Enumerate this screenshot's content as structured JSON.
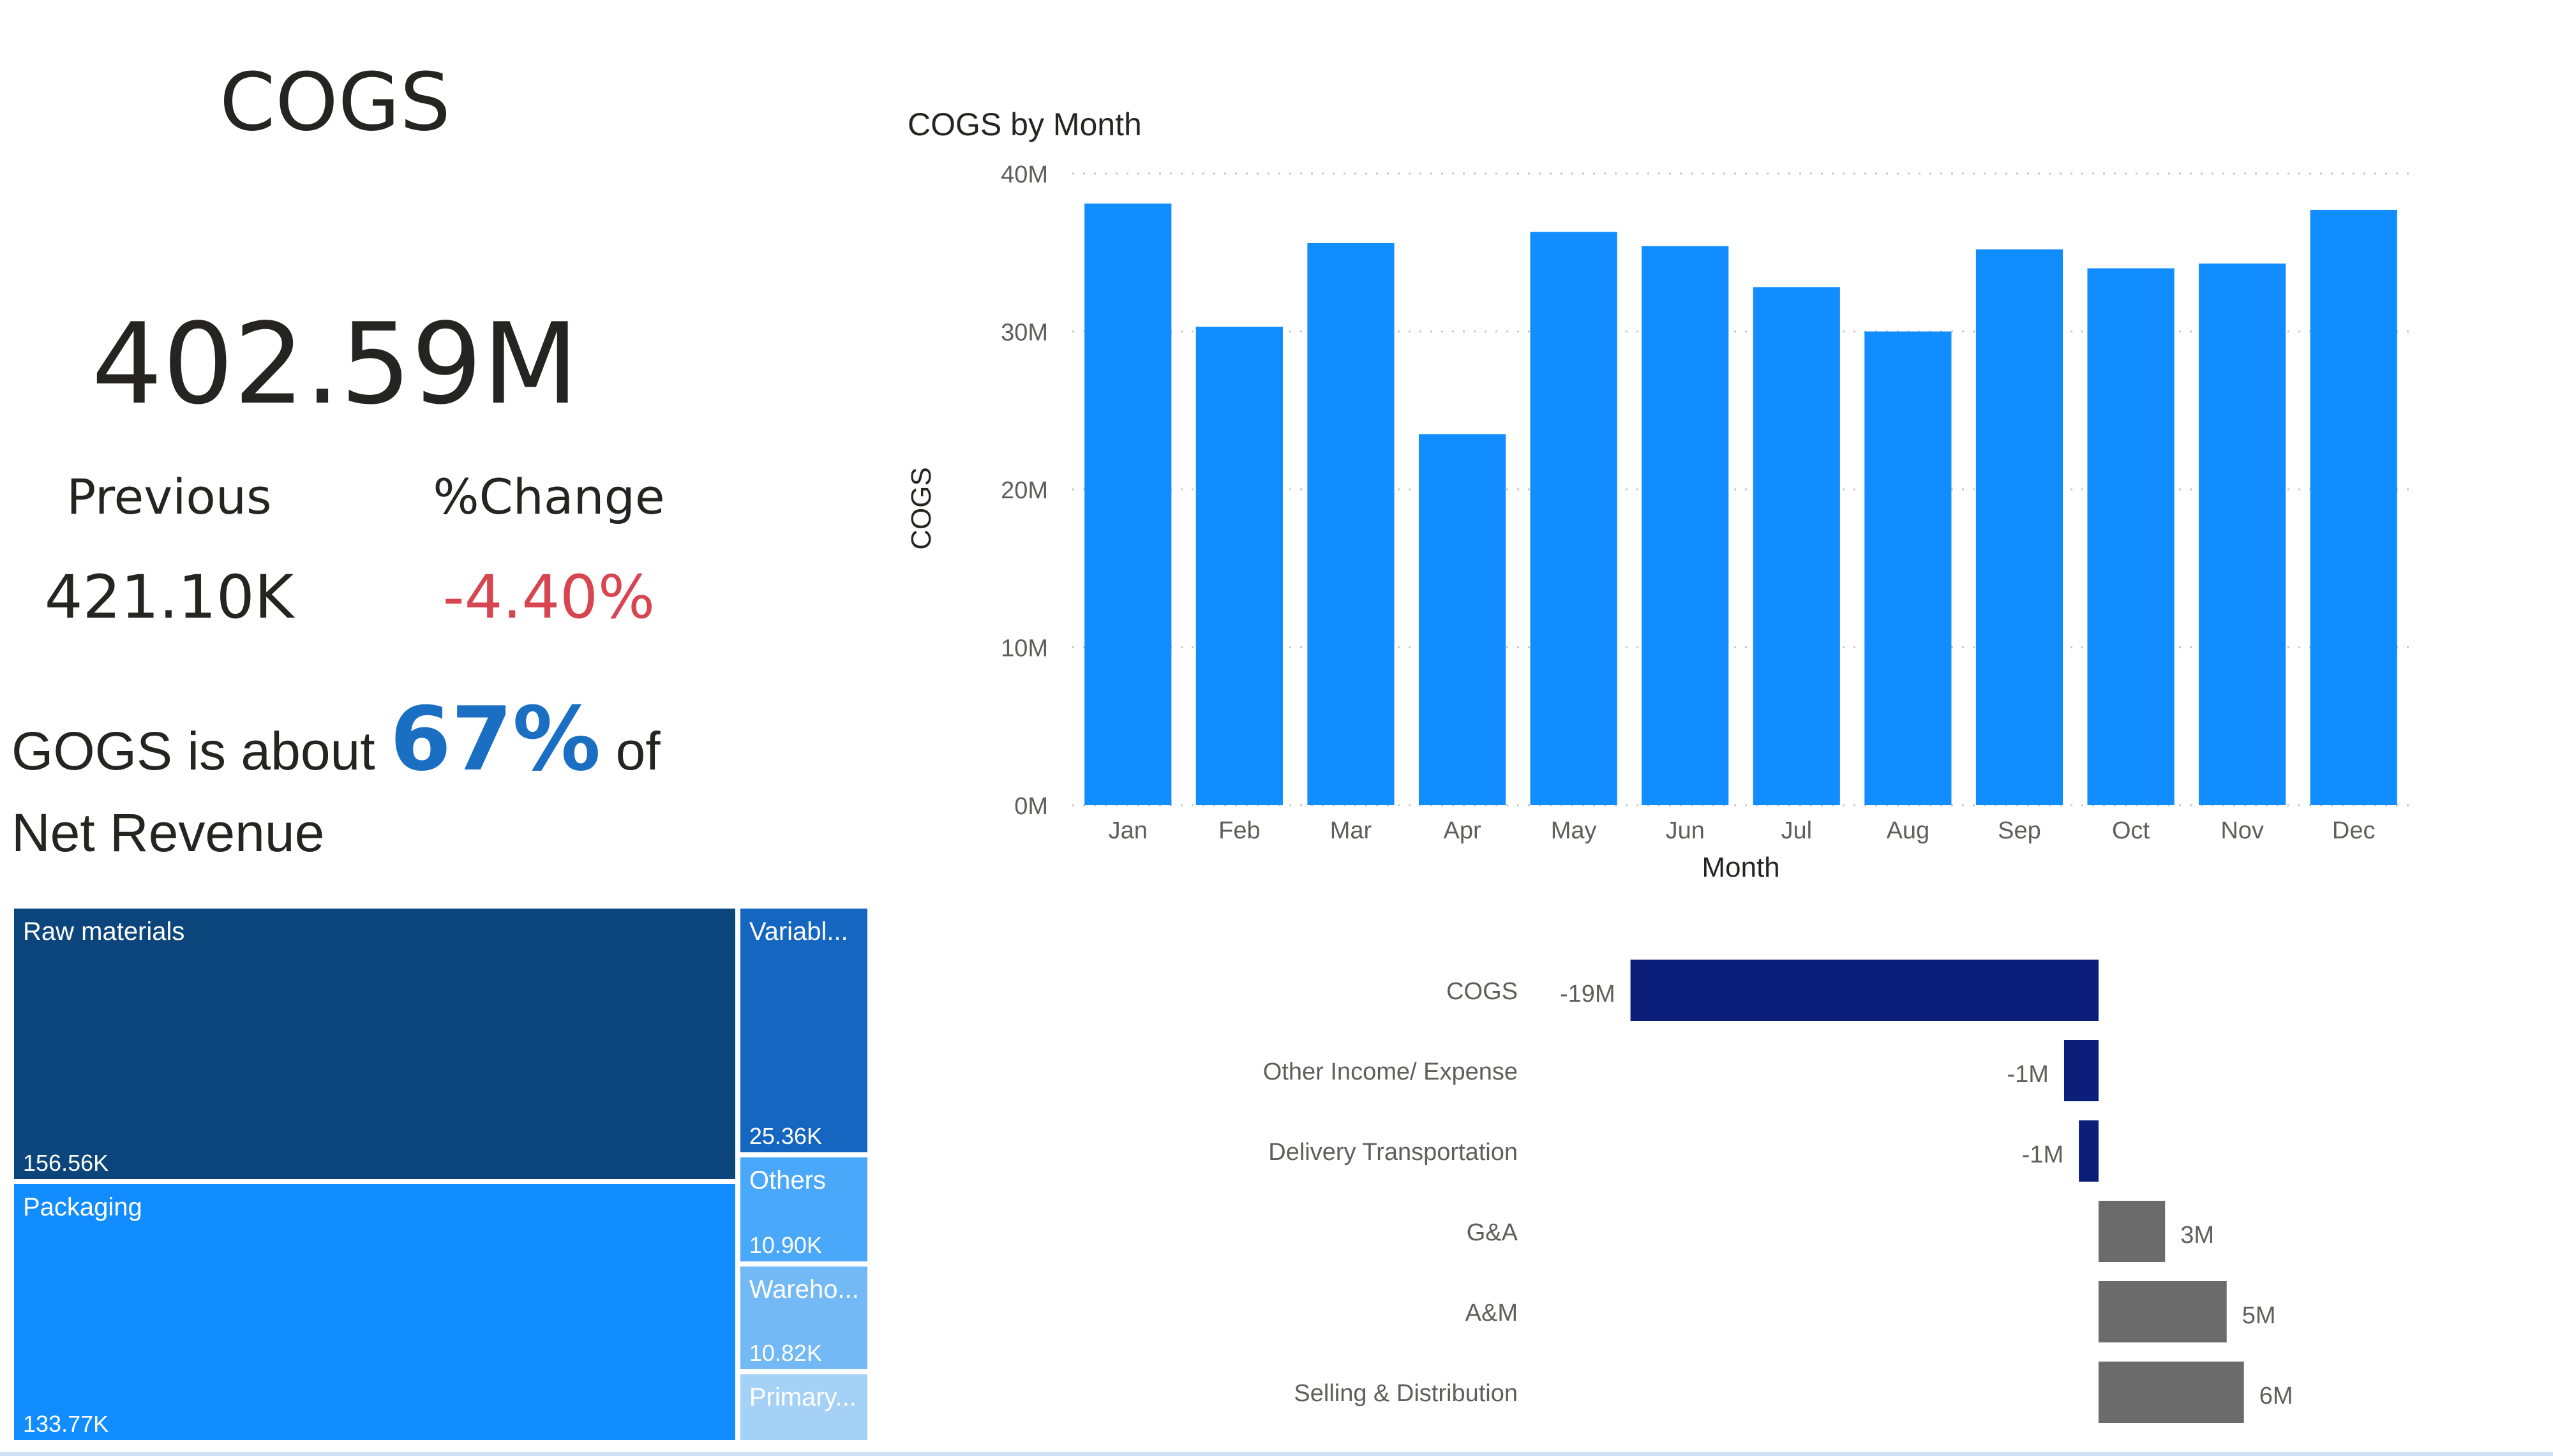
{
  "kpi": {
    "title": "COGS",
    "value": "402.59M",
    "previous_label": "Previous",
    "previous_value": "421.10K",
    "change_label": "%Change",
    "change_value": "-4.40%",
    "change_color": "#d64550"
  },
  "statement": {
    "prefix": "GOGS is about",
    "percent": "67%",
    "suffix": "of",
    "line2": "Net Revenue",
    "accent": "#1a6fc2"
  },
  "chart_data": [
    {
      "type": "bar",
      "title": "COGS by Month",
      "xlabel": "Month",
      "ylabel": "COGS",
      "categories": [
        "Jan",
        "Feb",
        "Mar",
        "Apr",
        "May",
        "Jun",
        "Jul",
        "Aug",
        "Sep",
        "Oct",
        "Nov",
        "Dec"
      ],
      "values": [
        38.1,
        30.3,
        35.6,
        23.5,
        36.3,
        35.4,
        32.8,
        30.0,
        35.2,
        34.0,
        34.3,
        37.7
      ],
      "unit": "M",
      "ylim": [
        0,
        40
      ],
      "yticks": [
        "0M",
        "10M",
        "20M",
        "30M",
        "40M"
      ],
      "grid": true,
      "color": "#118dff"
    },
    {
      "type": "bar",
      "orientation": "horizontal",
      "categories": [
        "COGS",
        "Other Income/ Expense",
        "Delivery Transportation",
        "G&A",
        "A&M",
        "Selling & Distribution"
      ],
      "values": [
        -19,
        -1.4,
        -0.8,
        2.7,
        5.2,
        5.9
      ],
      "labels": [
        "-19M",
        "-1M",
        "-1M",
        "3M",
        "5M",
        "6M"
      ],
      "negative_color": "#0b1f7a",
      "positive_color": "#6b6b6b"
    },
    {
      "type": "treemap",
      "items": [
        {
          "label": "Raw materials",
          "value": "156.56K",
          "color": "#0b457b"
        },
        {
          "label": "Packaging",
          "value": "133.77K",
          "color": "#118dff"
        },
        {
          "label": "Variabl...",
          "value": "25.36K",
          "color": "#1466c0"
        },
        {
          "label": "Others",
          "value": "10.90K",
          "color": "#4aa8fb"
        },
        {
          "label": "Wareho...",
          "value": "10.82K",
          "color": "#72b9f6"
        },
        {
          "label": "Primary...",
          "value": "",
          "color": "#a6d1f7"
        }
      ]
    }
  ]
}
